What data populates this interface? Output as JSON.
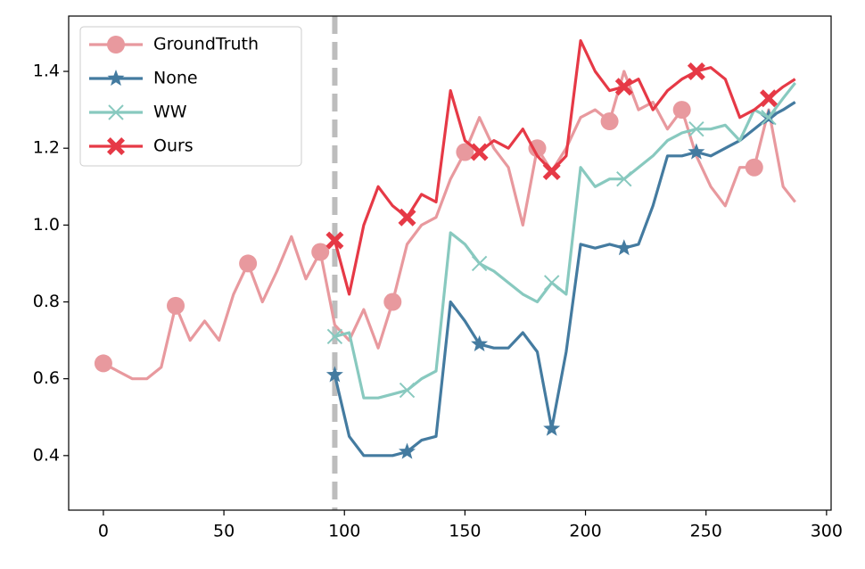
{
  "chart_data": {
    "type": "line",
    "xlim": [
      -14.4,
      301.9
    ],
    "xticks": [
      0,
      50,
      100,
      150,
      200,
      250,
      300
    ],
    "ylim": [
      0.258,
      1.544
    ],
    "yticks": [
      0.4,
      0.6,
      0.8,
      {
        "value": 1,
        "label": "1.0"
      },
      1.2,
      1.4
    ],
    "grid": false,
    "legend": "upper-left",
    "vline": 96,
    "vline_color": "#bdbdbd",
    "markevery": 30,
    "series": [
      {
        "name": "GroundTruth",
        "color": "#e8999e",
        "marker": "circle",
        "x": [
          0,
          6,
          12,
          18,
          24,
          30,
          36,
          42,
          48,
          54,
          60,
          66,
          72,
          78,
          84,
          90,
          96,
          102,
          108,
          114,
          120,
          126,
          132,
          138,
          144,
          150,
          156,
          162,
          168,
          174,
          180,
          186,
          192,
          198,
          204,
          210,
          216,
          222,
          228,
          234,
          240,
          246,
          252,
          258,
          264,
          270,
          276,
          282,
          287
        ],
        "values": [
          0.64,
          0.62,
          0.6,
          0.6,
          0.63,
          0.79,
          0.7,
          0.75,
          0.7,
          0.82,
          0.9,
          0.8,
          0.88,
          0.97,
          0.86,
          0.93,
          0.74,
          0.7,
          0.78,
          0.68,
          0.8,
          0.95,
          1.0,
          1.02,
          1.12,
          1.19,
          1.28,
          1.2,
          1.15,
          1.0,
          1.2,
          1.14,
          1.2,
          1.28,
          1.3,
          1.27,
          1.4,
          1.3,
          1.32,
          1.25,
          1.3,
          1.18,
          1.1,
          1.05,
          1.15,
          1.15,
          1.3,
          1.1,
          1.06
        ]
      },
      {
        "name": "None",
        "color": "#447ba0",
        "marker": "star",
        "x": [
          96,
          102,
          108,
          114,
          120,
          126,
          132,
          138,
          144,
          150,
          156,
          162,
          168,
          174,
          180,
          186,
          192,
          198,
          204,
          210,
          216,
          222,
          228,
          234,
          240,
          246,
          252,
          258,
          264,
          270,
          276,
          282,
          287
        ],
        "values": [
          0.61,
          0.45,
          0.4,
          0.4,
          0.4,
          0.41,
          0.44,
          0.45,
          0.8,
          0.75,
          0.69,
          0.68,
          0.68,
          0.72,
          0.67,
          0.47,
          0.67,
          0.95,
          0.94,
          0.95,
          0.94,
          0.95,
          1.05,
          1.18,
          1.18,
          1.19,
          1.18,
          1.2,
          1.22,
          1.25,
          1.28,
          1.3,
          1.32
        ]
      },
      {
        "name": "WW",
        "color": "#88c9bf",
        "marker": "x",
        "x": [
          96,
          102,
          108,
          114,
          120,
          126,
          132,
          138,
          144,
          150,
          156,
          162,
          168,
          174,
          180,
          186,
          192,
          198,
          204,
          210,
          216,
          222,
          228,
          234,
          240,
          246,
          252,
          258,
          264,
          270,
          276,
          282,
          287
        ],
        "values": [
          0.71,
          0.72,
          0.55,
          0.55,
          0.56,
          0.57,
          0.6,
          0.62,
          0.98,
          0.95,
          0.9,
          0.88,
          0.85,
          0.82,
          0.8,
          0.85,
          0.82,
          1.15,
          1.1,
          1.12,
          1.12,
          1.15,
          1.18,
          1.22,
          1.24,
          1.25,
          1.25,
          1.26,
          1.22,
          1.3,
          1.28,
          1.33,
          1.37
        ]
      },
      {
        "name": "Ours",
        "color": "#e63946",
        "marker": "X",
        "x": [
          96,
          102,
          108,
          114,
          120,
          126,
          132,
          138,
          144,
          150,
          156,
          162,
          168,
          174,
          180,
          186,
          192,
          198,
          204,
          210,
          216,
          222,
          228,
          234,
          240,
          246,
          252,
          258,
          264,
          270,
          276,
          282,
          287
        ],
        "values": [
          0.96,
          0.82,
          1.0,
          1.1,
          1.05,
          1.02,
          1.08,
          1.06,
          1.35,
          1.22,
          1.19,
          1.22,
          1.2,
          1.25,
          1.18,
          1.14,
          1.18,
          1.48,
          1.4,
          1.35,
          1.36,
          1.38,
          1.3,
          1.35,
          1.38,
          1.4,
          1.41,
          1.38,
          1.28,
          1.3,
          1.33,
          1.36,
          1.38
        ]
      }
    ]
  }
}
